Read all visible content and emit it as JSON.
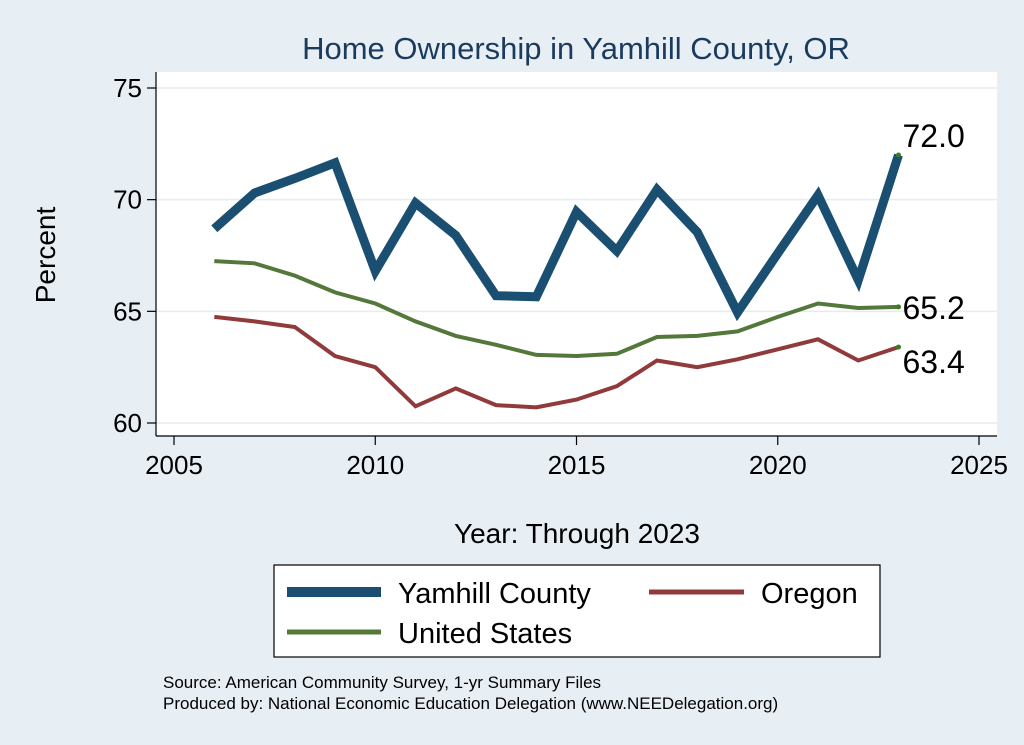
{
  "chart_data": {
    "type": "line",
    "title": "Home Ownership in Yamhill County, OR",
    "xlabel": "Year: Through 2023",
    "ylabel": "Percent",
    "xlim": [
      2005,
      2025
    ],
    "ylim": [
      60,
      75
    ],
    "x_ticks": [
      "2005",
      "2010",
      "2015",
      "2020",
      "2025"
    ],
    "y_ticks": [
      "60",
      "65",
      "70",
      "75"
    ],
    "grid": true,
    "x": [
      2006,
      2007,
      2008,
      2009,
      2010,
      2011,
      2012,
      2013,
      2014,
      2015,
      2016,
      2017,
      2018,
      2019,
      2020,
      2021,
      2022,
      2023
    ],
    "series": [
      {
        "name": "Yamhill County",
        "color": "#1a4f72",
        "values": [
          68.7,
          70.3,
          70.95,
          71.65,
          66.8,
          69.85,
          68.4,
          65.7,
          65.65,
          69.45,
          67.7,
          70.45,
          68.55,
          64.95,
          67.6,
          70.2,
          66.4,
          72.0
        ],
        "end_label": "72.0"
      },
      {
        "name": "Oregon",
        "color": "#903a3c",
        "values": [
          64.75,
          64.55,
          64.3,
          63.0,
          62.5,
          60.75,
          61.55,
          60.8,
          60.7,
          61.05,
          61.65,
          62.8,
          62.5,
          62.85,
          63.3,
          63.75,
          62.8,
          63.4
        ],
        "end_label": "63.4"
      },
      {
        "name": "United States",
        "color": "#54783a",
        "values": [
          67.25,
          67.15,
          66.6,
          65.85,
          65.35,
          64.55,
          63.9,
          63.5,
          63.05,
          63.0,
          63.1,
          63.85,
          63.9,
          64.1,
          64.75,
          65.35,
          65.15,
          65.2
        ],
        "end_label": "65.2"
      }
    ],
    "legend_position": "bottom",
    "legend": [
      "Yamhill County",
      "Oregon",
      "United States"
    ]
  },
  "notes": {
    "source": "Source: American Community Survey, 1-yr Summary Files",
    "produced_by": "Produced by: National Economic Education Delegation (www.NEEDelegation.org)"
  },
  "colors": {
    "background": "#e8eff4",
    "plot_background": "#ffffff",
    "grid": "#e3ecef",
    "title": "#1a3a5e"
  }
}
